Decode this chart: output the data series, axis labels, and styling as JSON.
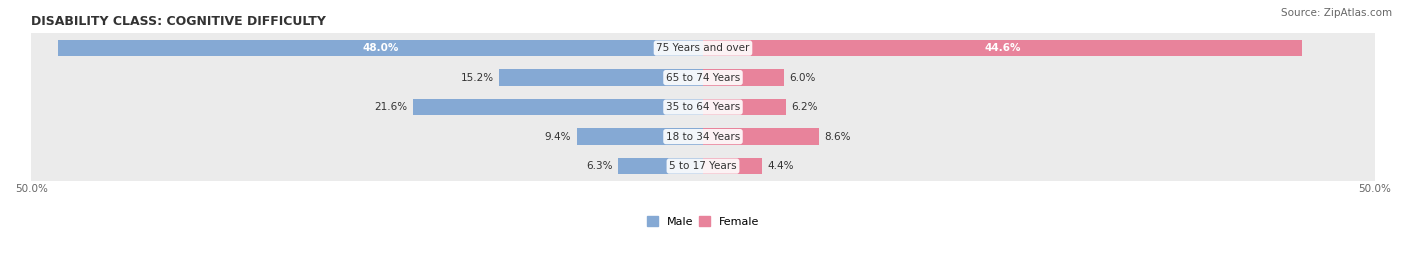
{
  "title": "DISABILITY CLASS: COGNITIVE DIFFICULTY",
  "source": "Source: ZipAtlas.com",
  "categories": [
    "5 to 17 Years",
    "18 to 34 Years",
    "35 to 64 Years",
    "65 to 74 Years",
    "75 Years and over"
  ],
  "male_values": [
    6.3,
    9.4,
    21.6,
    15.2,
    48.0
  ],
  "female_values": [
    4.4,
    8.6,
    6.2,
    6.0,
    44.6
  ],
  "max_val": 50.0,
  "male_color": "#85a9d4",
  "female_color": "#e8839b",
  "male_label": "Male",
  "female_label": "Female",
  "bg_row_color": "#ebebeb",
  "bar_height": 0.55,
  "title_fontsize": 9,
  "source_fontsize": 7.5,
  "label_fontsize": 7.5,
  "category_fontsize": 7.5,
  "axis_label_fontsize": 7.5,
  "legend_fontsize": 8
}
